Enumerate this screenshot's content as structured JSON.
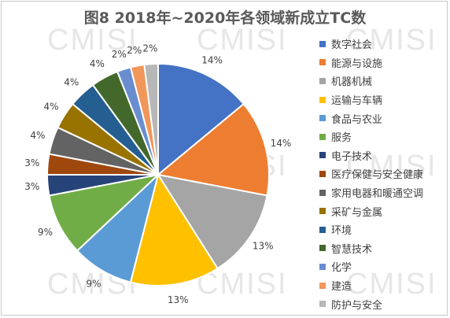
{
  "watermark_text": "CMISI",
  "chart_data": {
    "type": "pie",
    "title": "图8 2018年~2020年各领域新成立TC数",
    "legend_position": "right",
    "categories": [
      "数字社会",
      "能源与设施",
      "机器机械",
      "运输与车辆",
      "食品与农业",
      "服务",
      "电子技术",
      "医疗保健与安全健康",
      "家用电器和暖通空调",
      "采矿与金属",
      "环境",
      "智慧技术",
      "化学",
      "建造",
      "防护与安全"
    ],
    "values": [
      14,
      14,
      13,
      13,
      9,
      9,
      3,
      3,
      4,
      4,
      4,
      4,
      2,
      2,
      2
    ],
    "labels": [
      "14%",
      "14%",
      "13%",
      "13%",
      "9%",
      "9%",
      "3%",
      "3%",
      "4%",
      "4%",
      "4%",
      "4%",
      "2%",
      "2%",
      "2%"
    ],
    "colors": [
      "#4472c4",
      "#ed7d31",
      "#a5a5a5",
      "#ffc000",
      "#5b9bd5",
      "#70ad47",
      "#264478",
      "#9e480e",
      "#636363",
      "#997300",
      "#255e91",
      "#43682b",
      "#698ed0",
      "#f1975a",
      "#b7b7b7"
    ]
  }
}
